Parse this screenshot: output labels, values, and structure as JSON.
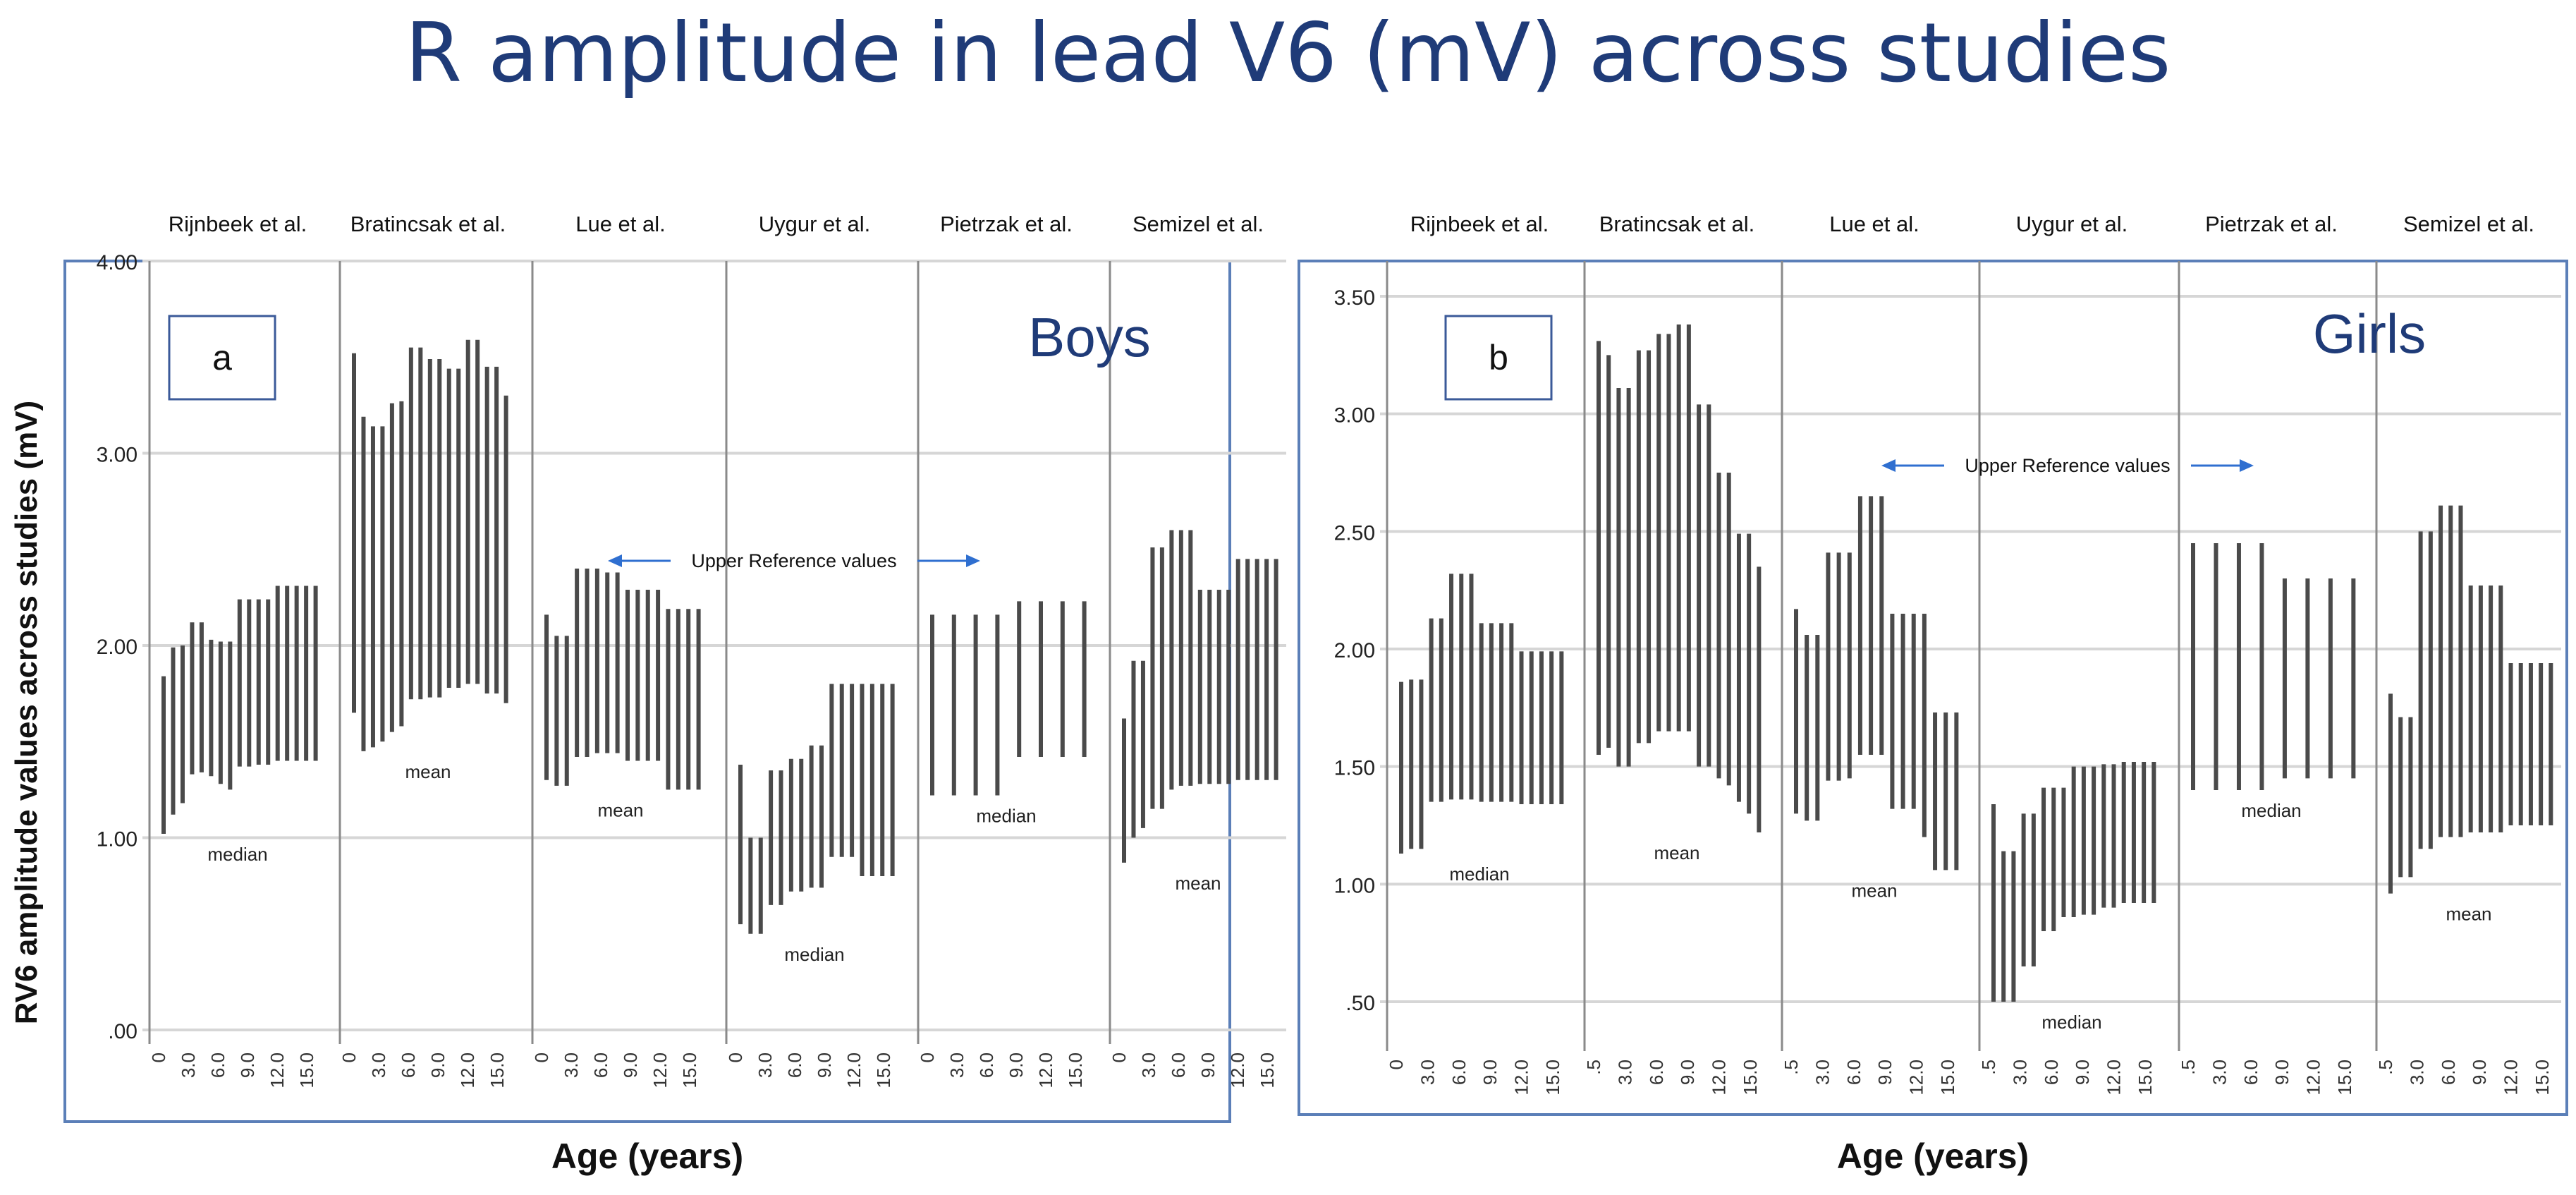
{
  "title": "R amplitude in lead V6 (mV) across studies",
  "y_axis_label": "RV6 amplitude values across studies (mV)",
  "panels": [
    {
      "label": "a",
      "group": "Boys",
      "xlabel": "Age (years)",
      "annotation": "Upper Reference values"
    },
    {
      "label": "b",
      "group": "Girls",
      "xlabel": "Age (years)",
      "annotation": "Upper Reference values"
    }
  ],
  "chart_data": [
    {
      "type": "range-bar",
      "panel": "a",
      "group": "Boys",
      "ylim": [
        0,
        4.0
      ],
      "yticks": [
        0,
        1,
        2,
        3,
        4
      ],
      "ytick_labels": [
        ".00",
        "1.00",
        "2.00",
        "3.00",
        "4.00"
      ],
      "grid": true,
      "xlabel": "Age (years)",
      "ylabel": "RV6 amplitude values across studies (mV)",
      "facets": [
        {
          "study": "Rijnbeek et al.",
          "stat": "median",
          "xticks": [
            "0",
            "3.0",
            "6.0",
            "9.0",
            "12.0",
            "15.0"
          ],
          "bars": [
            {
              "lo": 1.02,
              "hi": 1.84
            },
            {
              "lo": 1.12,
              "hi": 1.99
            },
            {
              "lo": 1.18,
              "hi": 2.0
            },
            {
              "lo": 1.33,
              "hi": 2.12
            },
            {
              "lo": 1.34,
              "hi": 2.12
            },
            {
              "lo": 1.32,
              "hi": 2.03
            },
            {
              "lo": 1.28,
              "hi": 2.02
            },
            {
              "lo": 1.25,
              "hi": 2.02
            },
            {
              "lo": 1.37,
              "hi": 2.24
            },
            {
              "lo": 1.37,
              "hi": 2.24
            },
            {
              "lo": 1.38,
              "hi": 2.24
            },
            {
              "lo": 1.38,
              "hi": 2.24
            },
            {
              "lo": 1.4,
              "hi": 2.31
            },
            {
              "lo": 1.4,
              "hi": 2.31
            },
            {
              "lo": 1.4,
              "hi": 2.31
            },
            {
              "lo": 1.4,
              "hi": 2.31
            },
            {
              "lo": 1.4,
              "hi": 2.31
            }
          ]
        },
        {
          "study": "Bratincsak et al.",
          "stat": "mean",
          "xticks": [
            "0",
            "3.0",
            "6.0",
            "9.0",
            "12.0",
            "15.0"
          ],
          "bars": [
            {
              "lo": 1.65,
              "hi": 3.52
            },
            {
              "lo": 1.45,
              "hi": 3.19
            },
            {
              "lo": 1.47,
              "hi": 3.14
            },
            {
              "lo": 1.5,
              "hi": 3.14
            },
            {
              "lo": 1.55,
              "hi": 3.26
            },
            {
              "lo": 1.58,
              "hi": 3.27
            },
            {
              "lo": 1.72,
              "hi": 3.55
            },
            {
              "lo": 1.72,
              "hi": 3.55
            },
            {
              "lo": 1.73,
              "hi": 3.49
            },
            {
              "lo": 1.73,
              "hi": 3.49
            },
            {
              "lo": 1.78,
              "hi": 3.44
            },
            {
              "lo": 1.78,
              "hi": 3.44
            },
            {
              "lo": 1.8,
              "hi": 3.59
            },
            {
              "lo": 1.8,
              "hi": 3.59
            },
            {
              "lo": 1.75,
              "hi": 3.45
            },
            {
              "lo": 1.75,
              "hi": 3.45
            },
            {
              "lo": 1.7,
              "hi": 3.3
            }
          ]
        },
        {
          "study": "Lue et al.",
          "stat": "mean",
          "xticks": [
            "0",
            "3.0",
            "6.0",
            "9.0",
            "12.0",
            "15.0"
          ],
          "bars": [
            {
              "lo": 1.3,
              "hi": 2.16
            },
            {
              "lo": 1.27,
              "hi": 2.05
            },
            {
              "lo": 1.27,
              "hi": 2.05
            },
            {
              "lo": 1.42,
              "hi": 2.4
            },
            {
              "lo": 1.42,
              "hi": 2.4
            },
            {
              "lo": 1.44,
              "hi": 2.4
            },
            {
              "lo": 1.44,
              "hi": 2.38
            },
            {
              "lo": 1.44,
              "hi": 2.38
            },
            {
              "lo": 1.4,
              "hi": 2.29
            },
            {
              "lo": 1.4,
              "hi": 2.29
            },
            {
              "lo": 1.4,
              "hi": 2.29
            },
            {
              "lo": 1.4,
              "hi": 2.29
            },
            {
              "lo": 1.25,
              "hi": 2.19
            },
            {
              "lo": 1.25,
              "hi": 2.19
            },
            {
              "lo": 1.25,
              "hi": 2.19
            },
            {
              "lo": 1.25,
              "hi": 2.19
            }
          ]
        },
        {
          "study": "Uygur et al.",
          "stat": "median",
          "xticks": [
            "0",
            "3.0",
            "6.0",
            "9.0",
            "12.0",
            "15.0"
          ],
          "bars": [
            {
              "lo": 0.55,
              "hi": 1.38
            },
            {
              "lo": 0.5,
              "hi": 1.0
            },
            {
              "lo": 0.5,
              "hi": 1.0
            },
            {
              "lo": 0.65,
              "hi": 1.35
            },
            {
              "lo": 0.65,
              "hi": 1.35
            },
            {
              "lo": 0.72,
              "hi": 1.41
            },
            {
              "lo": 0.72,
              "hi": 1.41
            },
            {
              "lo": 0.74,
              "hi": 1.48
            },
            {
              "lo": 0.74,
              "hi": 1.48
            },
            {
              "lo": 0.9,
              "hi": 1.8
            },
            {
              "lo": 0.9,
              "hi": 1.8
            },
            {
              "lo": 0.9,
              "hi": 1.8
            },
            {
              "lo": 0.8,
              "hi": 1.8
            },
            {
              "lo": 0.8,
              "hi": 1.8
            },
            {
              "lo": 0.8,
              "hi": 1.8
            },
            {
              "lo": 0.8,
              "hi": 1.8
            }
          ]
        },
        {
          "study": "Pietrzak et al.",
          "stat": "median",
          "xticks": [
            "0",
            "3.0",
            "6.0",
            "9.0",
            "12.0",
            "15.0"
          ],
          "bars": [
            {
              "lo": 1.22,
              "hi": 2.16
            },
            {
              "lo": 1.22,
              "hi": 2.16
            },
            {
              "lo": 1.22,
              "hi": 2.16
            },
            {
              "lo": 1.22,
              "hi": 2.16
            },
            {
              "lo": 1.42,
              "hi": 2.23
            },
            {
              "lo": 1.42,
              "hi": 2.23
            },
            {
              "lo": 1.42,
              "hi": 2.23
            },
            {
              "lo": 1.42,
              "hi": 2.23
            }
          ]
        },
        {
          "study": "Semizel et al.",
          "stat": "mean",
          "xticks": [
            "0",
            "3.0",
            "6.0",
            "9.0",
            "12.0",
            "15.0"
          ],
          "bars": [
            {
              "lo": 0.87,
              "hi": 1.62
            },
            {
              "lo": 1.0,
              "hi": 1.92
            },
            {
              "lo": 1.05,
              "hi": 1.92
            },
            {
              "lo": 1.15,
              "hi": 2.51
            },
            {
              "lo": 1.15,
              "hi": 2.51
            },
            {
              "lo": 1.25,
              "hi": 2.6
            },
            {
              "lo": 1.27,
              "hi": 2.6
            },
            {
              "lo": 1.27,
              "hi": 2.6
            },
            {
              "lo": 1.28,
              "hi": 2.29
            },
            {
              "lo": 1.28,
              "hi": 2.29
            },
            {
              "lo": 1.28,
              "hi": 2.29
            },
            {
              "lo": 1.28,
              "hi": 2.29
            },
            {
              "lo": 1.3,
              "hi": 2.45
            },
            {
              "lo": 1.3,
              "hi": 2.45
            },
            {
              "lo": 1.3,
              "hi": 2.45
            },
            {
              "lo": 1.3,
              "hi": 2.45
            },
            {
              "lo": 1.3,
              "hi": 2.45
            }
          ]
        }
      ]
    },
    {
      "type": "range-bar",
      "panel": "b",
      "group": "Girls",
      "ylim": [
        0.35,
        3.65
      ],
      "yticks": [
        0.5,
        1.0,
        1.5,
        2.0,
        2.5,
        3.0,
        3.5
      ],
      "ytick_labels": [
        ".50",
        "1.00",
        "1.50",
        "2.00",
        "2.50",
        "3.00",
        "3.50"
      ],
      "grid": true,
      "xlabel": "Age (years)",
      "facets": [
        {
          "study": "Rijnbeek et al.",
          "stat": "median",
          "xticks": [
            "0",
            "3.0",
            "6.0",
            "9.0",
            "12.0",
            "15.0"
          ],
          "bars": [
            {
              "lo": 1.13,
              "hi": 1.86
            },
            {
              "lo": 1.15,
              "hi": 1.87
            },
            {
              "lo": 1.15,
              "hi": 1.87
            },
            {
              "lo": 1.35,
              "hi": 2.13
            },
            {
              "lo": 1.35,
              "hi": 2.13
            },
            {
              "lo": 1.36,
              "hi": 2.32
            },
            {
              "lo": 1.36,
              "hi": 2.32
            },
            {
              "lo": 1.36,
              "hi": 2.32
            },
            {
              "lo": 1.35,
              "hi": 2.11
            },
            {
              "lo": 1.35,
              "hi": 2.11
            },
            {
              "lo": 1.35,
              "hi": 2.11
            },
            {
              "lo": 1.35,
              "hi": 2.11
            },
            {
              "lo": 1.34,
              "hi": 1.99
            },
            {
              "lo": 1.34,
              "hi": 1.99
            },
            {
              "lo": 1.34,
              "hi": 1.99
            },
            {
              "lo": 1.34,
              "hi": 1.99
            },
            {
              "lo": 1.34,
              "hi": 1.99
            }
          ]
        },
        {
          "study": "Bratincsak et al.",
          "stat": "mean",
          "xticks": [
            ".5",
            "3.0",
            "6.0",
            "9.0",
            "12.0",
            "15.0"
          ],
          "bars": [
            {
              "lo": 1.55,
              "hi": 3.31
            },
            {
              "lo": 1.58,
              "hi": 3.25
            },
            {
              "lo": 1.5,
              "hi": 3.11
            },
            {
              "lo": 1.5,
              "hi": 3.11
            },
            {
              "lo": 1.6,
              "hi": 3.27
            },
            {
              "lo": 1.6,
              "hi": 3.27
            },
            {
              "lo": 1.65,
              "hi": 3.34
            },
            {
              "lo": 1.65,
              "hi": 3.34
            },
            {
              "lo": 1.65,
              "hi": 3.38
            },
            {
              "lo": 1.65,
              "hi": 3.38
            },
            {
              "lo": 1.5,
              "hi": 3.04
            },
            {
              "lo": 1.5,
              "hi": 3.04
            },
            {
              "lo": 1.45,
              "hi": 2.75
            },
            {
              "lo": 1.42,
              "hi": 2.75
            },
            {
              "lo": 1.35,
              "hi": 2.49
            },
            {
              "lo": 1.3,
              "hi": 2.49
            },
            {
              "lo": 1.22,
              "hi": 2.35
            }
          ]
        },
        {
          "study": "Lue et al.",
          "stat": "mean",
          "xticks": [
            ".5",
            "3.0",
            "6.0",
            "9.0",
            "12.0",
            "15.0"
          ],
          "bars": [
            {
              "lo": 1.3,
              "hi": 2.17
            },
            {
              "lo": 1.27,
              "hi": 2.06
            },
            {
              "lo": 1.27,
              "hi": 2.06
            },
            {
              "lo": 1.44,
              "hi": 2.41
            },
            {
              "lo": 1.44,
              "hi": 2.41
            },
            {
              "lo": 1.45,
              "hi": 2.41
            },
            {
              "lo": 1.55,
              "hi": 2.65
            },
            {
              "lo": 1.55,
              "hi": 2.65
            },
            {
              "lo": 1.55,
              "hi": 2.65
            },
            {
              "lo": 1.32,
              "hi": 2.15
            },
            {
              "lo": 1.32,
              "hi": 2.15
            },
            {
              "lo": 1.32,
              "hi": 2.15
            },
            {
              "lo": 1.2,
              "hi": 2.15
            },
            {
              "lo": 1.06,
              "hi": 1.73
            },
            {
              "lo": 1.06,
              "hi": 1.73
            },
            {
              "lo": 1.06,
              "hi": 1.73
            }
          ]
        },
        {
          "study": "Uygur et al.",
          "stat": "median",
          "xticks": [
            ".5",
            "3.0",
            "6.0",
            "9.0",
            "12.0",
            "15.0"
          ],
          "bars": [
            {
              "lo": 0.5,
              "hi": 1.34
            },
            {
              "lo": 0.5,
              "hi": 1.14
            },
            {
              "lo": 0.5,
              "hi": 1.14
            },
            {
              "lo": 0.65,
              "hi": 1.3
            },
            {
              "lo": 0.65,
              "hi": 1.3
            },
            {
              "lo": 0.8,
              "hi": 1.41
            },
            {
              "lo": 0.8,
              "hi": 1.41
            },
            {
              "lo": 0.86,
              "hi": 1.41
            },
            {
              "lo": 0.86,
              "hi": 1.5
            },
            {
              "lo": 0.87,
              "hi": 1.5
            },
            {
              "lo": 0.87,
              "hi": 1.5
            },
            {
              "lo": 0.9,
              "hi": 1.51
            },
            {
              "lo": 0.9,
              "hi": 1.51
            },
            {
              "lo": 0.92,
              "hi": 1.52
            },
            {
              "lo": 0.92,
              "hi": 1.52
            },
            {
              "lo": 0.92,
              "hi": 1.52
            },
            {
              "lo": 0.92,
              "hi": 1.52
            }
          ]
        },
        {
          "study": "Pietrzak et al.",
          "stat": "median",
          "xticks": [
            ".5",
            "3.0",
            "6.0",
            "9.0",
            "12.0",
            "15.0"
          ],
          "bars": [
            {
              "lo": 1.4,
              "hi": 2.45
            },
            {
              "lo": 1.4,
              "hi": 2.45
            },
            {
              "lo": 1.4,
              "hi": 2.45
            },
            {
              "lo": 1.4,
              "hi": 2.45
            },
            {
              "lo": 1.45,
              "hi": 2.3
            },
            {
              "lo": 1.45,
              "hi": 2.3
            },
            {
              "lo": 1.45,
              "hi": 2.3
            },
            {
              "lo": 1.45,
              "hi": 2.3
            }
          ]
        },
        {
          "study": "Semizel et al.",
          "stat": "mean",
          "xticks": [
            ".5",
            "3.0",
            "6.0",
            "9.0",
            "12.0",
            "15.0"
          ],
          "bars": [
            {
              "lo": 0.96,
              "hi": 1.81
            },
            {
              "lo": 1.03,
              "hi": 1.71
            },
            {
              "lo": 1.03,
              "hi": 1.71
            },
            {
              "lo": 1.15,
              "hi": 2.5
            },
            {
              "lo": 1.15,
              "hi": 2.5
            },
            {
              "lo": 1.2,
              "hi": 2.61
            },
            {
              "lo": 1.2,
              "hi": 2.61
            },
            {
              "lo": 1.2,
              "hi": 2.61
            },
            {
              "lo": 1.22,
              "hi": 2.27
            },
            {
              "lo": 1.22,
              "hi": 2.27
            },
            {
              "lo": 1.22,
              "hi": 2.27
            },
            {
              "lo": 1.22,
              "hi": 2.27
            },
            {
              "lo": 1.25,
              "hi": 1.94
            },
            {
              "lo": 1.25,
              "hi": 1.94
            },
            {
              "lo": 1.25,
              "hi": 1.94
            },
            {
              "lo": 1.25,
              "hi": 1.94
            },
            {
              "lo": 1.25,
              "hi": 1.94
            }
          ]
        }
      ]
    }
  ]
}
